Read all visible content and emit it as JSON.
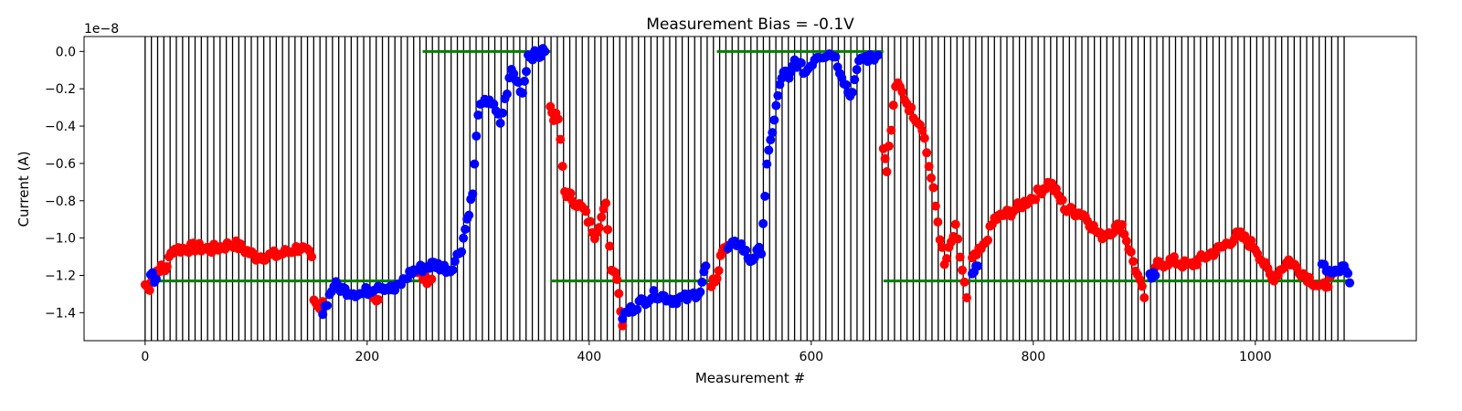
{
  "chart_data": {
    "type": "scatter",
    "title": "Measurement Bias = -0.1V",
    "xlabel": "Measurement #",
    "ylabel": "Current (A)",
    "y_offset_label": "1e−8",
    "xlim": [
      -55,
      1145
    ],
    "ylim": [
      -1.55,
      0.08
    ],
    "y_scale_note": "values in units of 1e-8 A",
    "x_ticks": [
      0,
      200,
      400,
      600,
      800,
      1000
    ],
    "x_tick_labels": [
      "0",
      "200",
      "400",
      "600",
      "800",
      "1000"
    ],
    "y_ticks": [
      -1.4,
      -1.2,
      -1.0,
      -0.8,
      -0.6,
      -0.4,
      -0.2,
      0.0
    ],
    "y_tick_labels": [
      "−1.4",
      "−1.2",
      "−1.0",
      "−0.8",
      "−0.6",
      "−0.4",
      "−0.2",
      "0.0"
    ],
    "grid": false,
    "vertical_markers": {
      "color": "#000000",
      "start": 0,
      "end": 1080,
      "step": 5.625
    },
    "green_segments": {
      "color": "#008000",
      "segments": [
        {
          "x": [
            5,
            250
          ],
          "y": -1.23
        },
        {
          "x": [
            250,
            365
          ],
          "y": 0.0
        },
        {
          "x": [
            365,
            515
          ],
          "y": -1.23
        },
        {
          "x": [
            515,
            665
          ],
          "y": 0.0
        },
        {
          "x": [
            665,
            1085
          ],
          "y": -1.23
        }
      ]
    },
    "series": [
      {
        "color": "#ff0000",
        "segments": [
          {
            "x": [
              0,
              4
            ],
            "y": [
              -1.25,
              -1.28
            ]
          },
          {
            "x": [
              5,
              13,
              18,
              25,
              30,
              45,
              60,
              80,
              100,
              120,
              140,
              150
            ],
            "y": [
              -1.22,
              -1.16,
              -1.17,
              -1.06,
              -1.06,
              -1.05,
              -1.06,
              -1.03,
              -1.1,
              -1.09,
              -1.05,
              -1.1
            ]
          },
          {
            "x": [
              152,
              157,
              160
            ],
            "y": [
              -1.35,
              -1.38,
              -1.34
            ]
          },
          {
            "x": [
              205,
              210
            ],
            "y": [
              -1.31,
              -1.33
            ]
          },
          {
            "x": [
              245,
              252,
              258
            ],
            "y": [
              -1.18,
              -1.22,
              -1.22
            ]
          },
          {
            "x": [
              365,
              368,
              372,
              378,
              385,
              395,
              405,
              415,
              420,
              425,
              430
            ],
            "y": [
              -0.3,
              -0.35,
              -0.36,
              -0.75,
              -0.79,
              -0.85,
              -0.98,
              -0.83,
              -1.15,
              -1.2,
              -1.47
            ]
          },
          {
            "x": [
              510,
              515,
              520,
              525
            ],
            "y": [
              -1.25,
              -1.2,
              -1.05,
              -1.04
            ]
          },
          {
            "x": [
              665,
              668,
              672,
              676,
              680,
              690,
              700,
              710,
              720,
              730,
              740
            ],
            "y": [
              -0.52,
              -0.62,
              -0.42,
              -0.18,
              -0.2,
              -0.32,
              -0.4,
              -0.75,
              -1.15,
              -0.95,
              -1.32
            ]
          },
          {
            "x": [
              745,
              755,
              765,
              780,
              800,
              815,
              830,
              845,
              860,
              880,
              900
            ],
            "y": [
              -1.12,
              -1.05,
              -0.9,
              -0.86,
              -0.78,
              -0.7,
              -0.85,
              -0.87,
              -0.99,
              -0.93,
              -1.32
            ]
          },
          {
            "x": [
              910,
              925,
              940,
              955,
              970,
              985,
              1000,
              1015,
              1030,
              1045,
              1060,
              1075
            ],
            "y": [
              -1.15,
              -1.12,
              -1.15,
              -1.1,
              -1.05,
              -0.98,
              -1.05,
              -1.22,
              -1.12,
              -1.2,
              -1.27,
              -1.18
            ]
          }
        ]
      },
      {
        "color": "#0000ff",
        "segments": [
          {
            "x": [
              5,
              10
            ],
            "y": [
              -1.2,
              -1.22
            ]
          },
          {
            "x": [
              160,
              170,
              180,
              195,
              210,
              225,
              240,
              260,
              275,
              285,
              290,
              295,
              300,
              310,
              320,
              330,
              340,
              345,
              355,
              360
            ],
            "y": [
              -1.4,
              -1.25,
              -1.28,
              -1.3,
              -1.25,
              -1.28,
              -1.18,
              -1.14,
              -1.17,
              -1.05,
              -0.9,
              -0.76,
              -0.32,
              -0.25,
              -0.38,
              -0.1,
              -0.22,
              -0.02,
              -0.02,
              0.0
            ]
          },
          {
            "x": [
              430,
              445,
              460,
              475,
              490,
              500,
              505
            ],
            "y": [
              -1.42,
              -1.35,
              -1.3,
              -1.33,
              -1.32,
              -1.28,
              -1.15
            ]
          },
          {
            "x": [
              525,
              535,
              545,
              555,
              560,
              565,
              570,
              575,
              580,
              585,
              595,
              605,
              620,
              635,
              645,
              655,
              660
            ],
            "y": [
              -1.06,
              -1.02,
              -1.12,
              -1.06,
              -0.62,
              -0.42,
              -0.24,
              -0.1,
              -0.16,
              -0.05,
              -0.11,
              -0.02,
              -0.01,
              -0.24,
              -0.03,
              -0.04,
              -0.02
            ]
          },
          {
            "x": [
              745,
              750
            ],
            "y": [
              -1.17,
              -1.15
            ]
          },
          {
            "x": [
              905,
              910
            ],
            "y": [
              -1.2,
              -1.2
            ]
          },
          {
            "x": [
              1060,
              1070,
              1080,
              1085
            ],
            "y": [
              -1.15,
              -1.2,
              -1.16,
              -1.24
            ]
          }
        ]
      }
    ]
  }
}
